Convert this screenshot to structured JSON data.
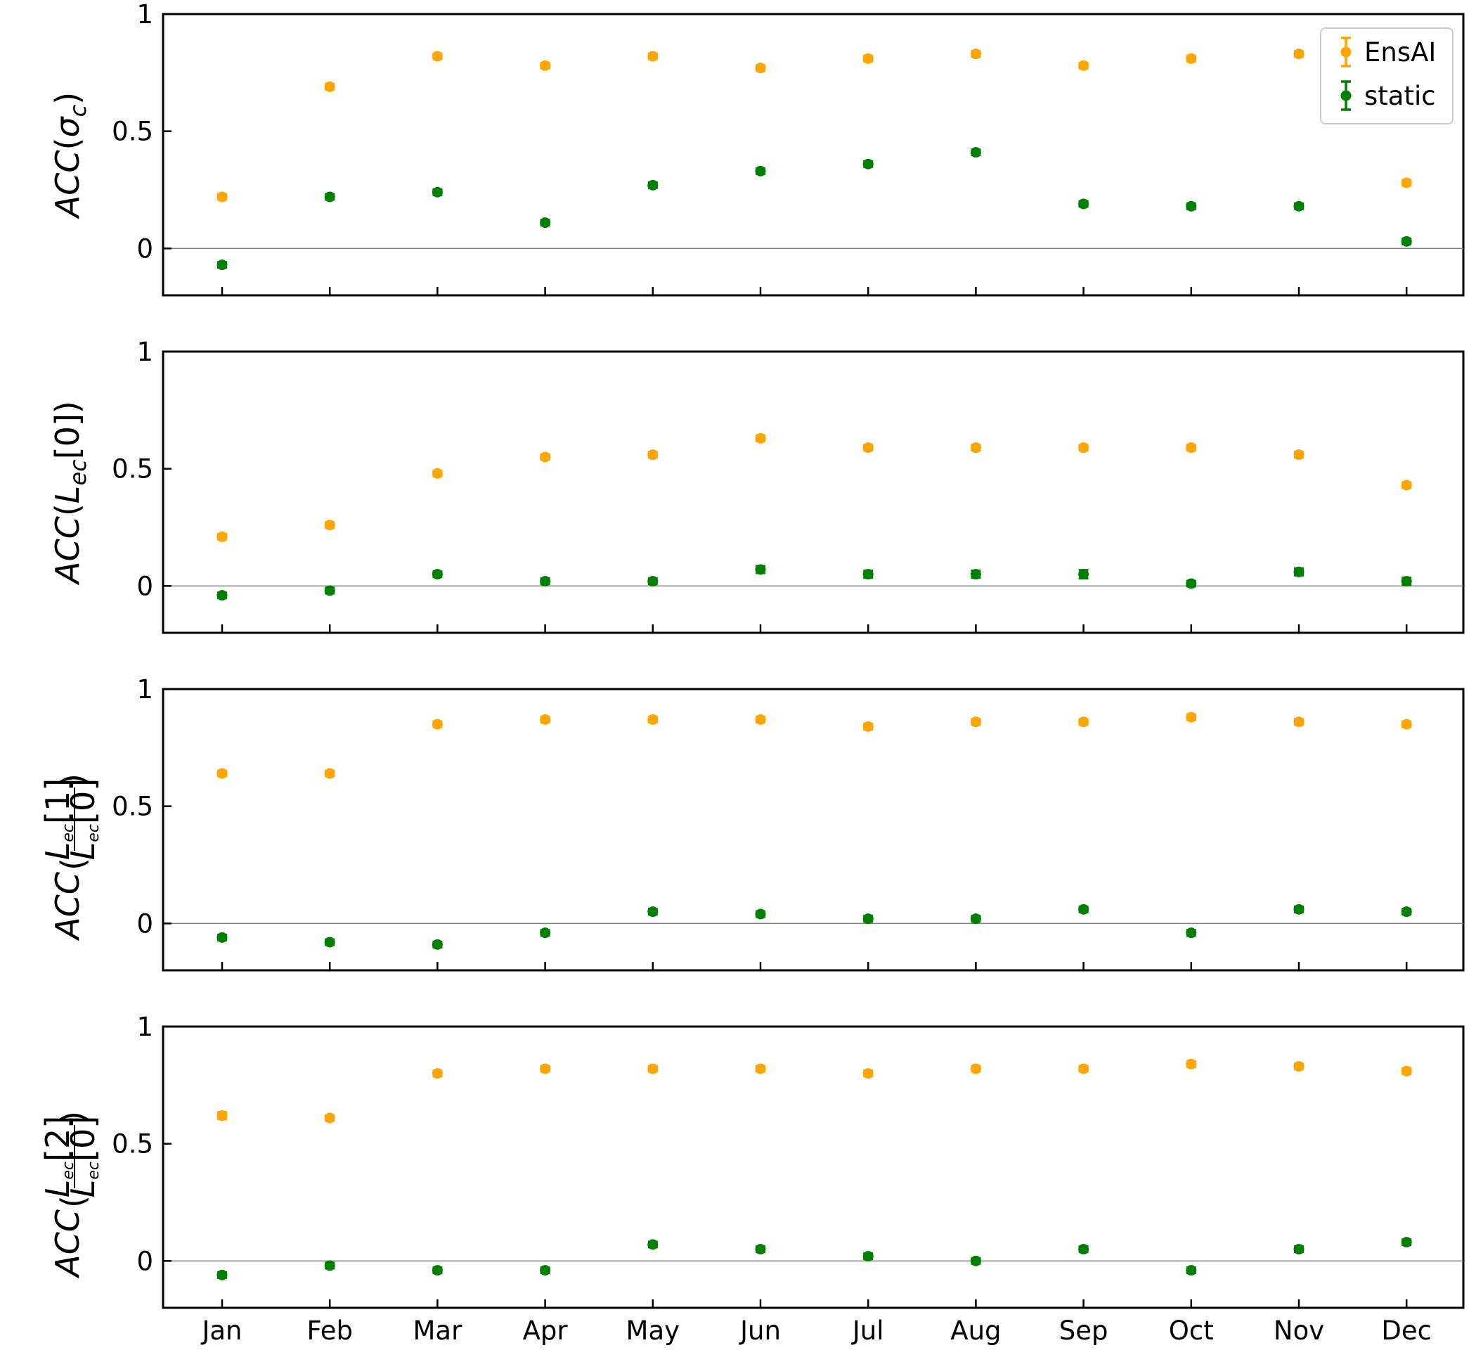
{
  "chart_data": {
    "type": "scatter",
    "categories": [
      "Jan",
      "Feb",
      "Mar",
      "Apr",
      "May",
      "Jun",
      "Jul",
      "Aug",
      "Sep",
      "Oct",
      "Nov",
      "Dec"
    ],
    "ylim": [
      -0.2,
      1.0
    ],
    "yticks": [
      0,
      0.5,
      1
    ],
    "ytick_labels": [
      "0",
      "0.5",
      "1"
    ],
    "grid": false,
    "reference_line_y": 0,
    "legend": {
      "placement": "top-right",
      "entries": [
        {
          "name": "EnsAI",
          "color": "#ffa500"
        },
        {
          "name": "static",
          "color": "#008000"
        }
      ]
    },
    "panels": [
      {
        "ylabel": {
          "base": "ACC",
          "inner": "σ",
          "sub": "c"
        },
        "series": [
          {
            "name": "EnsAI",
            "color": "#ffa500",
            "values": [
              0.22,
              0.69,
              0.82,
              0.78,
              0.82,
              0.77,
              0.81,
              0.83,
              0.78,
              0.81,
              0.83,
              0.28
            ],
            "errors": [
              0.005,
              0.005,
              0.005,
              0.005,
              0.005,
              0.005,
              0.005,
              0.005,
              0.005,
              0.005,
              0.005,
              0.005
            ]
          },
          {
            "name": "static",
            "color": "#008000",
            "values": [
              -0.07,
              0.22,
              0.24,
              0.11,
              0.27,
              0.33,
              0.36,
              0.41,
              0.19,
              0.18,
              0.18,
              0.03
            ],
            "errors": [
              0.005,
              0.005,
              0.005,
              0.005,
              0.005,
              0.005,
              0.005,
              0.005,
              0.005,
              0.005,
              0.005,
              0.005
            ]
          }
        ]
      },
      {
        "ylabel": {
          "base": "ACC",
          "L": "L",
          "sub": "ec",
          "index": "[0]"
        },
        "series": [
          {
            "name": "EnsAI",
            "color": "#ffa500",
            "values": [
              0.21,
              0.26,
              0.48,
              0.55,
              0.56,
              0.63,
              0.59,
              0.59,
              0.59,
              0.59,
              0.56,
              0.43
            ],
            "errors": [
              0.005,
              0.005,
              0.01,
              0.01,
              0.01,
              0.012,
              0.012,
              0.012,
              0.012,
              0.012,
              0.01,
              0.01
            ]
          },
          {
            "name": "static",
            "color": "#008000",
            "values": [
              -0.04,
              -0.02,
              0.05,
              0.02,
              0.02,
              0.07,
              0.05,
              0.05,
              0.05,
              0.01,
              0.06,
              0.02
            ],
            "errors": [
              0.005,
              0.005,
              0.01,
              0.012,
              0.012,
              0.015,
              0.015,
              0.015,
              0.018,
              0.012,
              0.015,
              0.015
            ]
          }
        ]
      },
      {
        "ylabel": {
          "base": "ACC",
          "L": "L",
          "sub": "ec",
          "num_index": "[1]",
          "den_index": "[0]"
        },
        "series": [
          {
            "name": "EnsAI",
            "color": "#ffa500",
            "values": [
              0.64,
              0.64,
              0.85,
              0.87,
              0.87,
              0.87,
              0.84,
              0.86,
              0.86,
              0.88,
              0.86,
              0.85
            ],
            "errors": [
              0.012,
              0.01,
              0.01,
              0.01,
              0.01,
              0.01,
              0.01,
              0.01,
              0.01,
              0.01,
              0.01,
              0.01
            ]
          },
          {
            "name": "static",
            "color": "#008000",
            "values": [
              -0.06,
              -0.08,
              -0.09,
              -0.04,
              0.05,
              0.04,
              0.02,
              0.02,
              0.06,
              -0.04,
              0.06,
              0.05
            ],
            "errors": [
              0.005,
              0.005,
              0.005,
              0.005,
              0.005,
              0.005,
              0.005,
              0.005,
              0.005,
              0.005,
              0.005,
              0.005
            ]
          }
        ]
      },
      {
        "ylabel": {
          "base": "ACC",
          "L": "L",
          "sub": "ec",
          "num_index": "[2]",
          "den_index": "[0]"
        },
        "series": [
          {
            "name": "EnsAI",
            "color": "#ffa500",
            "values": [
              0.62,
              0.61,
              0.8,
              0.82,
              0.82,
              0.82,
              0.8,
              0.82,
              0.82,
              0.84,
              0.83,
              0.81
            ],
            "errors": [
              0.015,
              0.012,
              0.012,
              0.012,
              0.012,
              0.01,
              0.01,
              0.01,
              0.01,
              0.01,
              0.01,
              0.01
            ]
          },
          {
            "name": "static",
            "color": "#008000",
            "values": [
              -0.06,
              -0.02,
              -0.04,
              -0.04,
              0.07,
              0.05,
              0.02,
              0.0,
              0.05,
              -0.04,
              0.05,
              0.08
            ],
            "errors": [
              0.005,
              0.005,
              0.005,
              0.005,
              0.012,
              0.012,
              0.012,
              0.005,
              0.01,
              0.005,
              0.012,
              0.012
            ]
          }
        ]
      }
    ]
  }
}
